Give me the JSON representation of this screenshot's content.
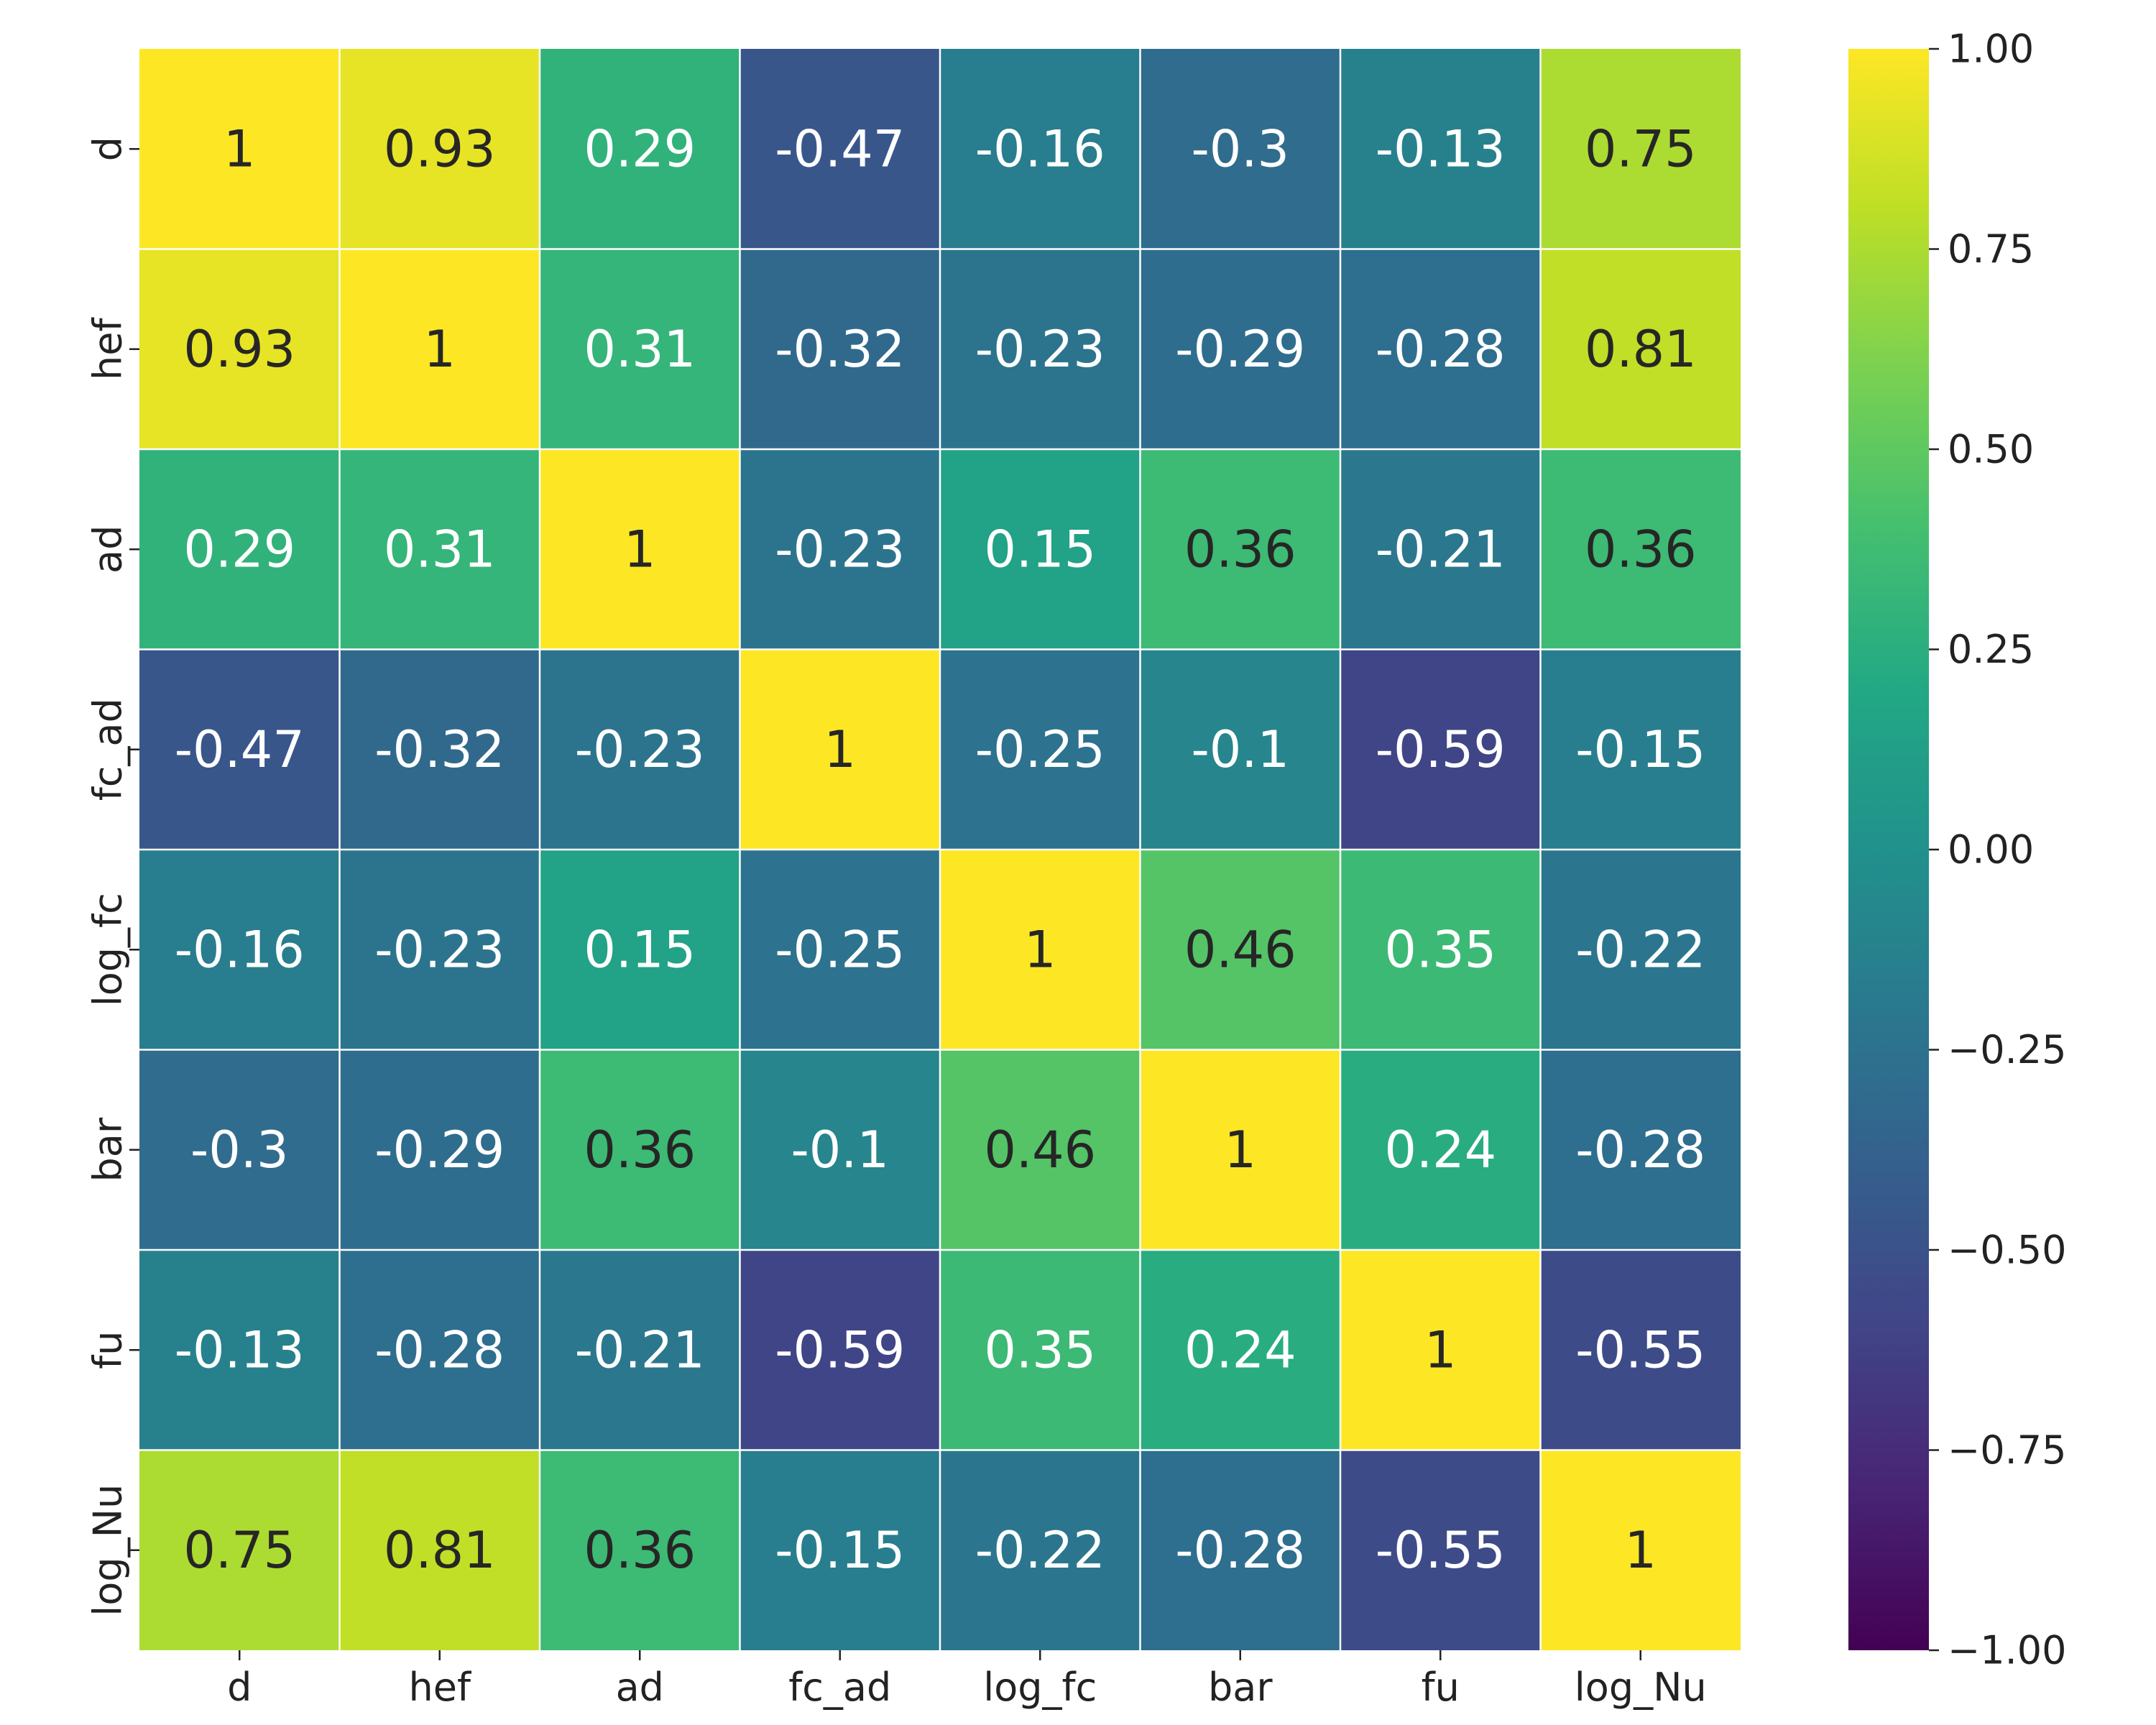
{
  "chart_data": {
    "type": "heatmap",
    "title": "",
    "xlabel": "",
    "ylabel": "",
    "colormap": "viridis",
    "vmin": -1.0,
    "vmax": 1.0,
    "annotated": true,
    "x_labels": [
      "d",
      "hef",
      "ad",
      "fc_ad",
      "log_fc",
      "bar",
      "fu",
      "log_Nu"
    ],
    "y_labels": [
      "d",
      "hef",
      "ad",
      "fc_ad",
      "log_fc",
      "bar",
      "fu",
      "log_Nu"
    ],
    "values": [
      [
        1,
        0.93,
        0.29,
        -0.47,
        -0.16,
        -0.3,
        -0.13,
        0.75
      ],
      [
        0.93,
        1,
        0.31,
        -0.32,
        -0.23,
        -0.29,
        -0.28,
        0.81
      ],
      [
        0.29,
        0.31,
        1,
        -0.23,
        0.15,
        0.36,
        -0.21,
        0.36
      ],
      [
        -0.47,
        -0.32,
        -0.23,
        1,
        -0.25,
        -0.1,
        -0.59,
        -0.15
      ],
      [
        -0.16,
        -0.23,
        0.15,
        -0.25,
        1,
        0.46,
        0.35,
        -0.22
      ],
      [
        -0.3,
        -0.29,
        0.36,
        -0.1,
        0.46,
        1,
        0.24,
        -0.28
      ],
      [
        -0.13,
        -0.28,
        -0.21,
        -0.59,
        0.35,
        0.24,
        1,
        -0.55
      ],
      [
        0.75,
        0.81,
        0.36,
        -0.15,
        -0.22,
        -0.28,
        -0.55,
        1
      ]
    ],
    "colorbar": {
      "ticks": [
        1.0,
        0.75,
        0.5,
        0.25,
        0.0,
        -0.25,
        -0.5,
        -0.75,
        -1.0
      ],
      "tick_labels": [
        "1.00",
        "0.75",
        "0.50",
        "0.25",
        "0.00",
        "−0.25",
        "−0.50",
        "−0.75",
        "−1.00"
      ]
    },
    "grid_lines": "white",
    "text_colors": {
      "light": "#ffffff",
      "dark": "#262626"
    }
  }
}
